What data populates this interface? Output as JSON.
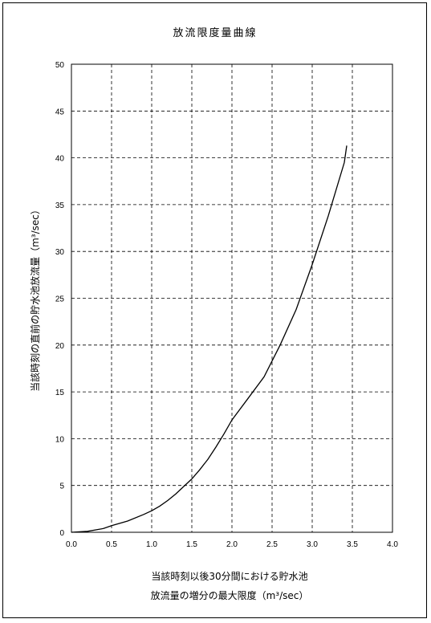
{
  "chart_data": {
    "type": "line",
    "title": "放流限度量曲線",
    "xlabel_lines": [
      "当該時刻以後30分間における貯水池",
      "放流量の増分の最大限度（m³/sec）"
    ],
    "ylabel": "当該時刻の直前の貯水池放流量（m³/sec）",
    "xlim": [
      0.0,
      4.0
    ],
    "ylim": [
      0,
      50
    ],
    "xticks": [
      0.0,
      0.5,
      1.0,
      1.5,
      2.0,
      2.5,
      3.0,
      3.5,
      4.0
    ],
    "xtick_labels": [
      "0.0",
      "0.5",
      "1.0",
      "1.5",
      "2.0",
      "2.5",
      "3.0",
      "3.5",
      "4.0"
    ],
    "yticks": [
      0,
      5,
      10,
      15,
      20,
      25,
      30,
      35,
      40,
      45,
      50
    ],
    "ytick_labels": [
      "0",
      "5",
      "10",
      "15",
      "20",
      "25",
      "30",
      "35",
      "40",
      "45",
      "50"
    ],
    "grid": true,
    "grid_style": "dashed",
    "line_color": "#000000",
    "series": [
      {
        "x": [
          0.0,
          0.2,
          0.4,
          0.5,
          0.7,
          0.9,
          1.0,
          1.1,
          1.2,
          1.3,
          1.4,
          1.5,
          1.6,
          1.7,
          1.8,
          1.9,
          2.0,
          2.2,
          2.4,
          2.5,
          2.6,
          2.8,
          3.0,
          3.2,
          3.4,
          3.43
        ],
        "y": [
          0,
          0.1,
          0.4,
          0.7,
          1.2,
          1.9,
          2.3,
          2.8,
          3.4,
          4.1,
          4.9,
          5.7,
          6.7,
          7.8,
          9.1,
          10.5,
          12.0,
          14.3,
          16.6,
          18.3,
          20.0,
          23.8,
          28.6,
          33.8,
          39.5,
          41.3
        ]
      }
    ]
  }
}
